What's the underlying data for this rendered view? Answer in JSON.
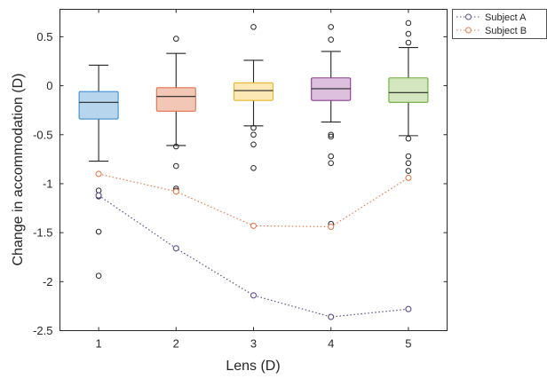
{
  "chart_data": {
    "type": "box",
    "xlabel": "Lens (D)",
    "ylabel": "Change in accommodation (D)",
    "categories": [
      "1",
      "2",
      "3",
      "4",
      "5"
    ],
    "x_ticks": [
      "1",
      "2",
      "3",
      "4",
      "5"
    ],
    "y_ticks": [
      "0.5",
      "0",
      "-0.5",
      "-1",
      "-1.5",
      "-2",
      "-2.5"
    ],
    "y_tick_values": [
      0.5,
      0,
      -0.5,
      -1,
      -1.5,
      -2,
      -2.5
    ],
    "xlim": [
      0.5,
      5.5
    ],
    "ylim": [
      -2.5,
      0.78
    ],
    "grid": false,
    "legend_position": "top-right outside",
    "boxes": [
      {
        "category": "1",
        "q1": -0.34,
        "median": -0.17,
        "q3": -0.06,
        "whisker_low": -0.77,
        "whisker_high": 0.21,
        "outliers": [
          -1.07,
          -1.13,
          -1.49,
          -1.94
        ],
        "fill": "#b7d6ee",
        "edge": "#3d8fd1"
      },
      {
        "category": "2",
        "q1": -0.26,
        "median": -0.11,
        "q3": -0.02,
        "whisker_low": -0.61,
        "whisker_high": 0.33,
        "outliers": [
          0.48,
          -0.62,
          -0.82,
          -1.05,
          -1.07
        ],
        "fill": "#f2c7b5",
        "edge": "#e0734d"
      },
      {
        "category": "3",
        "q1": -0.15,
        "median": -0.05,
        "q3": 0.03,
        "whisker_low": -0.41,
        "whisker_high": 0.26,
        "outliers": [
          0.6,
          -0.43,
          -0.5,
          -0.6,
          -0.84
        ],
        "fill": "#fbe8b4",
        "edge": "#e6b628"
      },
      {
        "category": "4",
        "q1": -0.15,
        "median": -0.03,
        "q3": 0.08,
        "whisker_low": -0.37,
        "whisker_high": 0.35,
        "outliers": [
          0.6,
          0.47,
          -0.5,
          -0.52,
          -0.72,
          -0.79,
          -1.41
        ],
        "fill": "#dcc0de",
        "edge": "#8a3d93"
      },
      {
        "category": "5",
        "q1": -0.17,
        "median": -0.07,
        "q3": 0.08,
        "whisker_low": -0.51,
        "whisker_high": 0.39,
        "outliers": [
          0.64,
          0.53,
          0.44,
          -0.54,
          -0.72,
          -0.79,
          -0.87
        ],
        "fill": "#d3e6bf",
        "edge": "#6aab37"
      }
    ],
    "series": [
      {
        "name": "Subject A",
        "x": [
          1,
          2,
          3,
          4,
          5
        ],
        "values": [
          -1.12,
          -1.66,
          -2.14,
          -2.36,
          -2.28
        ],
        "color": "#5e4b8b"
      },
      {
        "name": "Subject B",
        "x": [
          1,
          2,
          3,
          4,
          5
        ],
        "values": [
          -0.9,
          -1.08,
          -1.43,
          -1.44,
          -0.94
        ],
        "color": "#e67a4f"
      }
    ],
    "median_color": "#262626",
    "whisker_color": "#262626",
    "outlier_color": "#262626"
  }
}
